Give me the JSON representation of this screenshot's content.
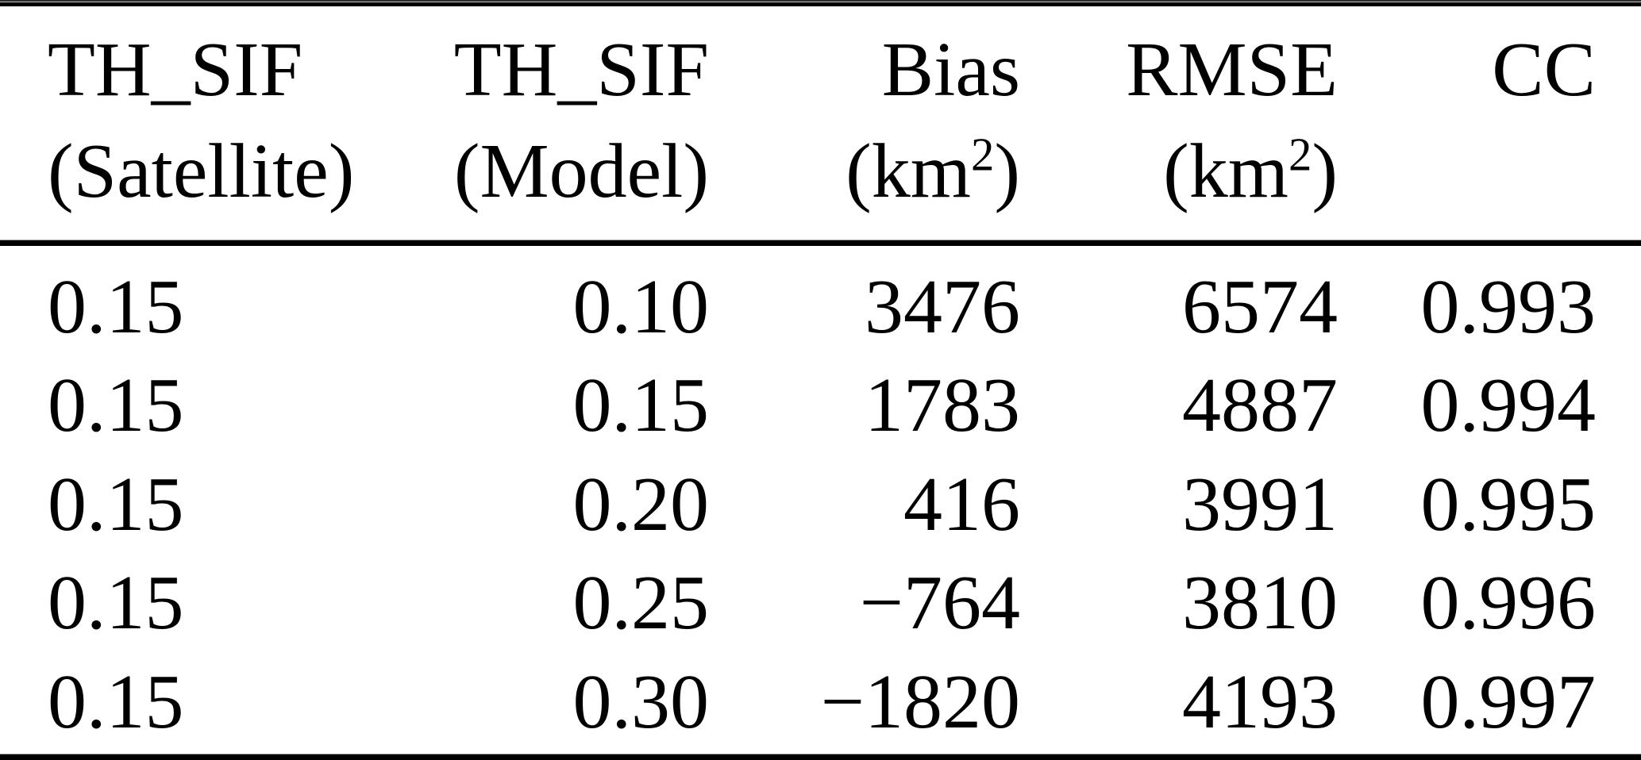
{
  "table": {
    "headers": [
      {
        "title": "TH_SIF",
        "sub": "(Satellite)",
        "sub_sup": "",
        "sub_post": ""
      },
      {
        "title": "TH_SIF",
        "sub": "(Model)",
        "sub_sup": "",
        "sub_post": ""
      },
      {
        "title": "Bias",
        "sub": "(km",
        "sub_sup": "2",
        "sub_post": ")"
      },
      {
        "title": "RMSE",
        "sub": "(km",
        "sub_sup": "2",
        "sub_post": ")"
      },
      {
        "title": "CC",
        "sub": "",
        "sub_sup": "",
        "sub_post": ""
      }
    ],
    "rows": [
      [
        "0.15",
        "0.10",
        "3476",
        "6574",
        "0.993"
      ],
      [
        "0.15",
        "0.15",
        "1783",
        "4887",
        "0.994"
      ],
      [
        "0.15",
        "0.20",
        "416",
        "3991",
        "0.995"
      ],
      [
        "0.15",
        "0.25",
        "−764",
        "3810",
        "0.996"
      ],
      [
        "0.15",
        "0.30",
        "−1820",
        "4193",
        "0.997"
      ]
    ]
  },
  "colors": {
    "text": "#000000",
    "background": "#ffffff",
    "rule": "#000000"
  },
  "chart_data": {
    "type": "table",
    "title": "",
    "columns": [
      "TH_SIF (Satellite)",
      "TH_SIF (Model)",
      "Bias (km2)",
      "RMSE (km2)",
      "CC"
    ],
    "rows": [
      [
        0.15,
        0.1,
        3476,
        6574,
        0.993
      ],
      [
        0.15,
        0.15,
        1783,
        4887,
        0.994
      ],
      [
        0.15,
        0.2,
        416,
        3991,
        0.995
      ],
      [
        0.15,
        0.25,
        -764,
        3810,
        0.996
      ],
      [
        0.15,
        0.3,
        -1820,
        4193,
        0.997
      ]
    ]
  }
}
